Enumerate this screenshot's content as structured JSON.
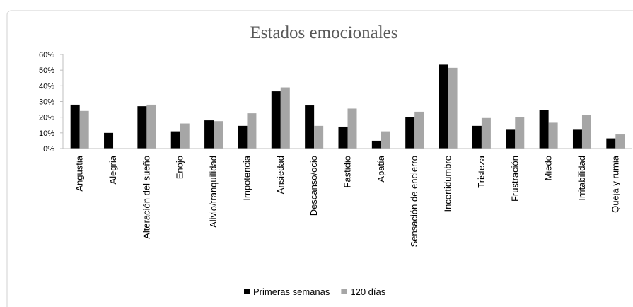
{
  "chart_data": {
    "type": "bar",
    "title": "Estados emocionales",
    "categories": [
      "Angustia",
      "Alegria",
      "Alteración del sueño",
      "Enojo",
      "Alivio/tranquilidad",
      "Impotencia",
      "Ansiedad",
      "Descanso/ocio",
      "Fastidio",
      "Apatía",
      "Sensación de encierro",
      "Incertidumbre",
      "Tristeza",
      "Frustración",
      "Miedo",
      "Irritabilidad",
      "Queja y rumia"
    ],
    "series": [
      {
        "name": "Primeras semanas",
        "color": "#000000",
        "values": [
          28,
          10,
          27,
          11,
          18,
          14.5,
          36.5,
          27.5,
          14,
          5,
          20,
          53.5,
          14.5,
          12,
          24.5,
          12,
          6.5
        ]
      },
      {
        "name": "120 días",
        "color": "#a6a6a6",
        "values": [
          24,
          0,
          28,
          16,
          17.5,
          22.5,
          39,
          14.5,
          25.5,
          11,
          23.5,
          51.5,
          19.5,
          20,
          16.5,
          21.5,
          9
        ]
      }
    ],
    "ylim": [
      0,
      60
    ],
    "yticks": [
      {
        "value": 0,
        "label": "0%"
      },
      {
        "value": 10,
        "label": "10%"
      },
      {
        "value": 20,
        "label": "20%"
      },
      {
        "value": 30,
        "label": "30%"
      },
      {
        "value": 40,
        "label": "40%"
      },
      {
        "value": 50,
        "label": "50%"
      },
      {
        "value": 60,
        "label": "60%"
      }
    ],
    "grid": false,
    "legend": "bottom"
  }
}
